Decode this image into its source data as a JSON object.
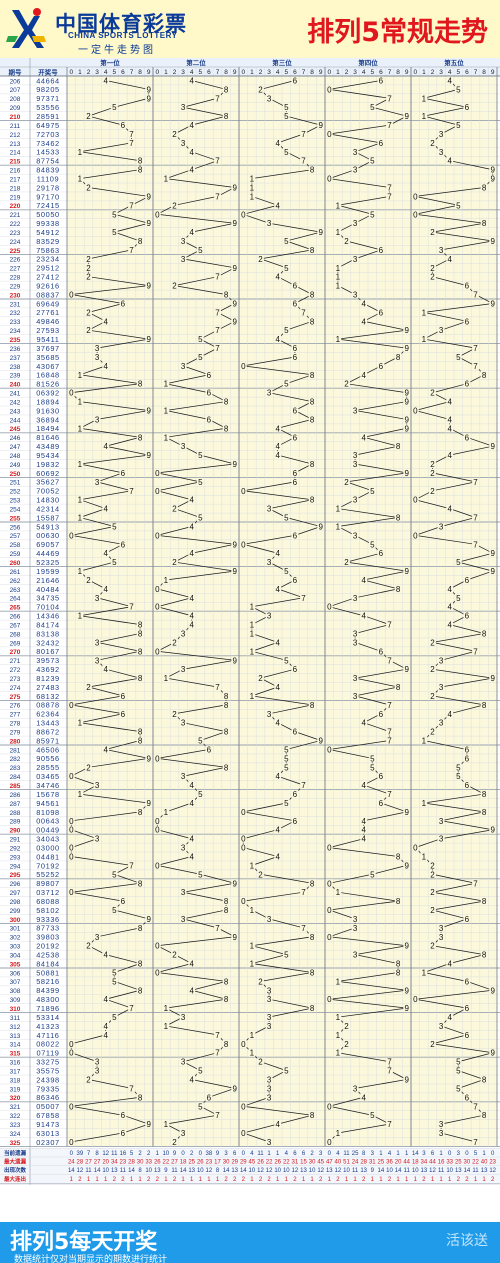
{
  "header": {
    "logo_cn": "中国体育彩票",
    "logo_en": "CHINA SPORTS LOTTERY",
    "logo_slogan": "一定牛走势图",
    "title": "排列5常规走势"
  },
  "footer": {
    "main": "排列5每天开奖",
    "sub": "数据统计仅对当期显示的期数进行统计",
    "watermark": "活该送"
  },
  "colors": {
    "title_red": "#e0181e",
    "logo_blue": "#0a3a9a",
    "column_bg": "#fbf8dc",
    "grid_line": "#d7dbe2",
    "footer_blue": "#1f9bea",
    "max_miss_red": "#d4191e"
  },
  "chart_data": {
    "type": "table",
    "table_header": {
      "period": "期号",
      "draw": "开奖号"
    },
    "positions": [
      "第一位",
      "第二位",
      "第三位",
      "第四位",
      "第五位"
    ],
    "digits": [
      "0",
      "1",
      "2",
      "3",
      "4",
      "5",
      "6",
      "7",
      "8",
      "9"
    ],
    "draws": [
      [
        "206",
        "44664"
      ],
      [
        "207",
        "98205"
      ],
      [
        "208",
        "97371"
      ],
      [
        "209",
        "53556"
      ],
      [
        "210",
        "28591"
      ],
      [
        "211",
        "64975"
      ],
      [
        "212",
        "72703"
      ],
      [
        "213",
        "73462"
      ],
      [
        "214",
        "14533"
      ],
      [
        "215",
        "87754"
      ],
      [
        "216",
        "84839"
      ],
      [
        "217",
        "11109"
      ],
      [
        "218",
        "29178"
      ],
      [
        "219",
        "97170"
      ],
      [
        "220",
        "72415"
      ],
      [
        "221",
        "50050"
      ],
      [
        "222",
        "99338"
      ],
      [
        "223",
        "54912"
      ],
      [
        "224",
        "83529"
      ],
      [
        "225",
        "75863"
      ],
      [
        "226",
        "23234"
      ],
      [
        "227",
        "29512"
      ],
      [
        "228",
        "27412"
      ],
      [
        "229",
        "92616"
      ],
      [
        "230",
        "08837"
      ],
      [
        "231",
        "69649"
      ],
      [
        "232",
        "27761"
      ],
      [
        "233",
        "49846"
      ],
      [
        "234",
        "27593"
      ],
      [
        "235",
        "95411"
      ],
      [
        "236",
        "37697"
      ],
      [
        "237",
        "35685"
      ],
      [
        "238",
        "43067"
      ],
      [
        "239",
        "16848"
      ],
      [
        "240",
        "81526"
      ],
      [
        "241",
        "06392"
      ],
      [
        "242",
        "18894"
      ],
      [
        "243",
        "91630"
      ],
      [
        "244",
        "36894"
      ],
      [
        "245",
        "18494"
      ],
      [
        "246",
        "81646"
      ],
      [
        "247",
        "43489"
      ],
      [
        "248",
        "95434"
      ],
      [
        "249",
        "19832"
      ],
      [
        "250",
        "60692"
      ],
      [
        "251",
        "35627"
      ],
      [
        "252",
        "70052"
      ],
      [
        "253",
        "14830"
      ],
      [
        "254",
        "42314"
      ],
      [
        "255",
        "15587"
      ],
      [
        "256",
        "54913"
      ],
      [
        "257",
        "00630"
      ],
      [
        "258",
        "69057"
      ],
      [
        "259",
        "44469"
      ],
      [
        "260",
        "52325"
      ],
      [
        "261",
        "19599"
      ],
      [
        "262",
        "21646"
      ],
      [
        "263",
        "40484"
      ],
      [
        "264",
        "34735"
      ],
      [
        "265",
        "70104"
      ],
      [
        "266",
        "14346"
      ],
      [
        "267",
        "84174"
      ],
      [
        "268",
        "83138"
      ],
      [
        "269",
        "32432"
      ],
      [
        "270",
        "80167"
      ],
      [
        "271",
        "39573"
      ],
      [
        "272",
        "43692"
      ],
      [
        "273",
        "81239"
      ],
      [
        "274",
        "27483"
      ],
      [
        "275",
        "68132"
      ],
      [
        "276",
        "08878"
      ],
      [
        "277",
        "62364"
      ],
      [
        "278",
        "13443"
      ],
      [
        "279",
        "88672"
      ],
      [
        "280",
        "85971"
      ],
      [
        "281",
        "46506"
      ],
      [
        "282",
        "90556"
      ],
      [
        "283",
        "28555"
      ],
      [
        "284",
        "03465"
      ],
      [
        "285",
        "34746"
      ],
      [
        "286",
        "15678"
      ],
      [
        "287",
        "94561"
      ],
      [
        "288",
        "81098"
      ],
      [
        "289",
        "00643"
      ],
      [
        "290",
        "00449"
      ],
      [
        "291",
        "34043"
      ],
      [
        "292",
        "03000"
      ],
      [
        "293",
        "04481"
      ],
      [
        "294",
        "70192"
      ],
      [
        "295",
        "55252"
      ],
      [
        "296",
        "89807"
      ],
      [
        "297",
        "03712"
      ],
      [
        "298",
        "68088"
      ],
      [
        "299",
        "58102"
      ],
      [
        "300",
        "93336"
      ],
      [
        "301",
        "87733"
      ],
      [
        "302",
        "39803"
      ],
      [
        "303",
        "20192"
      ],
      [
        "304",
        "42538"
      ],
      [
        "305",
        "84184"
      ],
      [
        "306",
        "50881"
      ],
      [
        "307",
        "58216"
      ],
      [
        "308",
        "84399"
      ],
      [
        "309",
        "48300"
      ],
      [
        "310",
        "71896"
      ],
      [
        "311",
        "53314"
      ],
      [
        "312",
        "41323"
      ],
      [
        "313",
        "47116"
      ],
      [
        "314",
        "08022"
      ],
      [
        "315",
        "07119"
      ],
      [
        "316",
        "33275"
      ],
      [
        "317",
        "35575"
      ],
      [
        "318",
        "24398"
      ],
      [
        "319",
        "79335"
      ],
      [
        "320",
        "86346"
      ],
      [
        "321",
        "05007"
      ],
      [
        "322",
        "67858"
      ],
      [
        "323",
        "91473"
      ],
      [
        "324",
        "63013"
      ],
      [
        "325",
        "02307"
      ]
    ],
    "stats": [
      {
        "label": "当前遗漏",
        "values": [
          [
            "0",
            "39",
            "7",
            "8",
            "12",
            "11",
            "16",
            "5",
            "2",
            "2"
          ],
          [
            "1",
            "10",
            "9",
            "0",
            "2",
            "0",
            "38",
            "9",
            "3",
            "6"
          ],
          [
            "0",
            "4",
            "11",
            "1",
            "1",
            "4",
            "6",
            "6",
            "2",
            "3"
          ],
          [
            "0",
            "4",
            "11",
            "25",
            "8",
            "3",
            "1",
            "4",
            "1",
            "1"
          ],
          [
            "14",
            "3",
            "6",
            "1",
            "0",
            "3",
            "0",
            "5",
            "1",
            "0"
          ]
        ]
      },
      {
        "label": "最大遗漏",
        "values": [
          [
            "24",
            "28",
            "27",
            "27",
            "20",
            "34",
            "23",
            "28",
            "30",
            "33"
          ],
          [
            "26",
            "22",
            "27",
            "18",
            "25",
            "26",
            "23",
            "17",
            "30",
            "29"
          ],
          [
            "29",
            "45",
            "26",
            "22",
            "26",
            "22",
            "31",
            "15",
            "30",
            "45"
          ],
          [
            "47",
            "40",
            "51",
            "24",
            "28",
            "31",
            "25",
            "36",
            "20",
            "44"
          ],
          [
            "18",
            "34",
            "44",
            "16",
            "33",
            "25",
            "30",
            "22",
            "40",
            "23"
          ]
        ]
      },
      {
        "label": "出现次数",
        "values": [
          [
            "14",
            "12",
            "11",
            "14",
            "10",
            "13",
            "11",
            "14",
            "8",
            "10"
          ],
          [
            "13",
            "9",
            "11",
            "14",
            "13",
            "10",
            "12",
            "8",
            "14",
            "13"
          ],
          [
            "14",
            "10",
            "12",
            "12",
            "10",
            "10",
            "12",
            "13",
            "10",
            "12"
          ],
          [
            "13",
            "12",
            "10",
            "11",
            "13",
            "9",
            "14",
            "10",
            "14",
            "11"
          ],
          [
            "10",
            "13",
            "12",
            "11",
            "10",
            "13",
            "14",
            "11",
            "13",
            "12"
          ]
        ]
      },
      {
        "label": "最大连出",
        "values": [
          [
            "1",
            "2",
            "1",
            "1",
            "1",
            "2",
            "2",
            "1",
            "1",
            "2"
          ],
          [
            "2",
            "1",
            "2",
            "1",
            "1",
            "1",
            "1",
            "1",
            "2",
            "2"
          ],
          [
            "2",
            "1",
            "2",
            "2",
            "1",
            "1",
            "2",
            "1",
            "1",
            "2"
          ],
          [
            "1",
            "2",
            "1",
            "1",
            "2",
            "1",
            "1",
            "2",
            "1",
            "1"
          ],
          [
            "1",
            "2",
            "1",
            "1",
            "1",
            "2",
            "2",
            "1",
            "1",
            "2"
          ]
        ]
      }
    ]
  }
}
